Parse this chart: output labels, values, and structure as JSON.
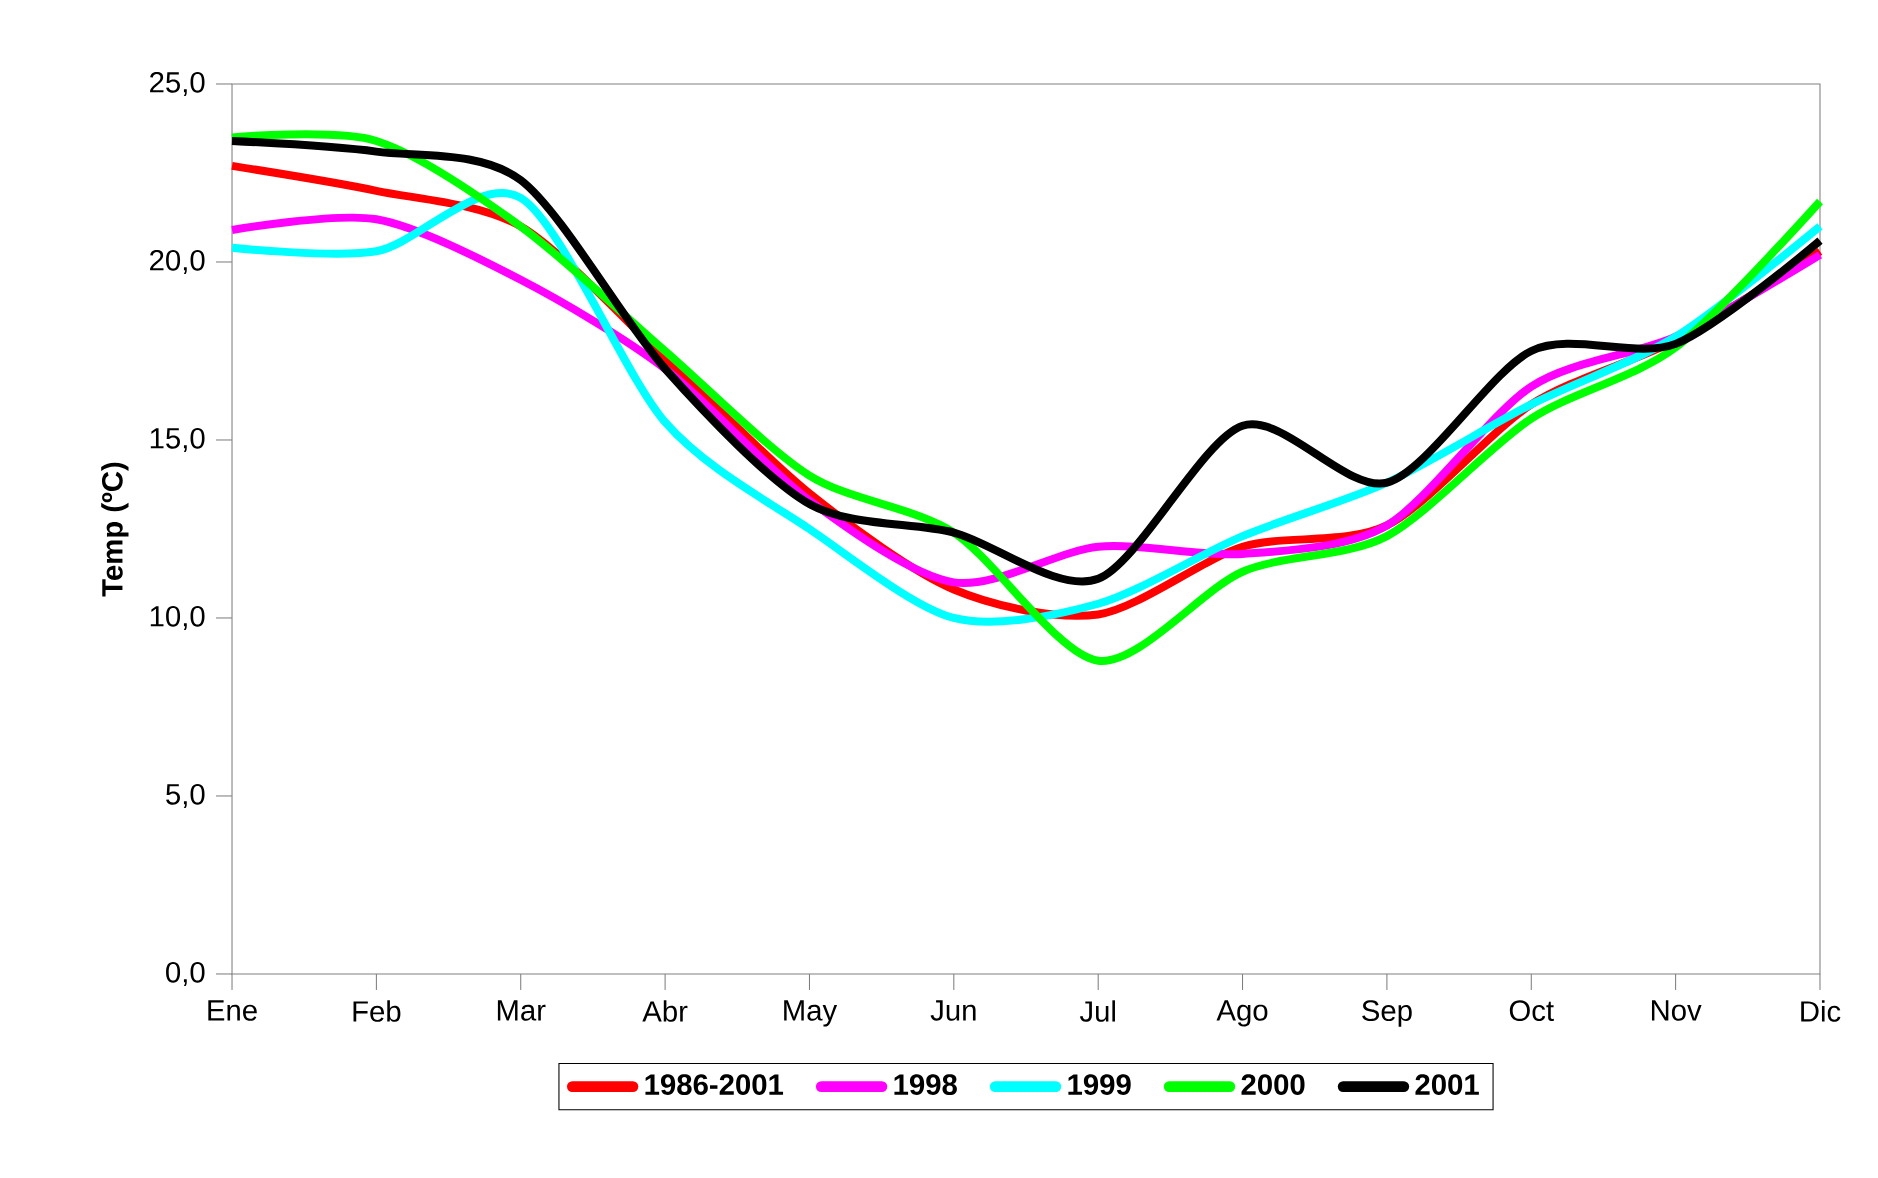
{
  "chart_data": {
    "type": "line",
    "ylabel": "Temp (ºC)",
    "categories": [
      "Ene",
      "Feb",
      "Mar",
      "Abr",
      "May",
      "Jun",
      "Jul",
      "Ago",
      "Sep",
      "Oct",
      "Nov",
      "Dic"
    ],
    "ylim": [
      0,
      25
    ],
    "yticks": [
      {
        "value": 0,
        "label": "0,0"
      },
      {
        "value": 5,
        "label": "5,0"
      },
      {
        "value": 10,
        "label": "10,0"
      },
      {
        "value": 15,
        "label": "15,0"
      },
      {
        "value": 20,
        "label": "20,0"
      },
      {
        "value": 25,
        "label": "25,0"
      }
    ],
    "series": [
      {
        "name": "1986-2001",
        "color": "#ff0000",
        "values": [
          22.7,
          22.0,
          21.0,
          17.3,
          13.5,
          10.8,
          10.1,
          12.0,
          12.6,
          16.0,
          17.8,
          20.3
        ]
      },
      {
        "name": "1998",
        "color": "#ff00ff",
        "values": [
          20.9,
          21.2,
          19.5,
          17.0,
          13.3,
          11.0,
          12.0,
          11.8,
          12.6,
          16.5,
          17.9,
          20.2
        ]
      },
      {
        "name": "1999",
        "color": "#00ffff",
        "values": [
          20.4,
          20.3,
          21.8,
          15.5,
          12.5,
          10.0,
          10.4,
          12.3,
          13.8,
          16.0,
          17.9,
          21.0
        ]
      },
      {
        "name": "2000",
        "color": "#00ff00",
        "values": [
          23.5,
          23.4,
          21.0,
          17.5,
          14.0,
          12.4,
          8.8,
          11.3,
          12.3,
          15.6,
          17.6,
          21.7
        ]
      },
      {
        "name": "2001",
        "color": "#000000",
        "values": [
          23.4,
          23.1,
          22.3,
          17.0,
          13.2,
          12.4,
          11.1,
          15.4,
          13.8,
          17.5,
          17.7,
          20.6
        ]
      }
    ],
    "grid": false,
    "legend": "bottom",
    "marker": "none",
    "line_style": "solid"
  }
}
